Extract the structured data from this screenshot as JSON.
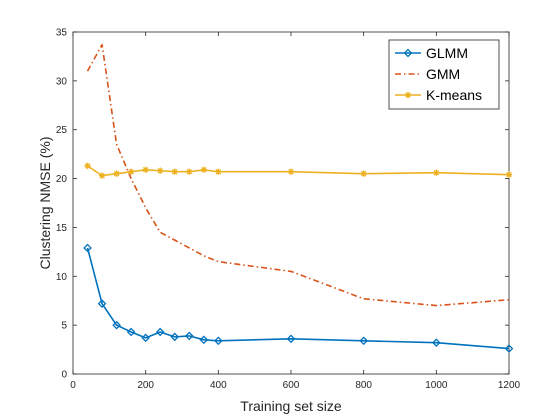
{
  "chart_data": {
    "type": "line",
    "title": "",
    "xlabel": "Training set size",
    "ylabel": "Clustering NMSE (%)",
    "xlim": [
      0,
      1200
    ],
    "ylim": [
      0,
      35
    ],
    "xticks": [
      0,
      200,
      400,
      600,
      800,
      1000,
      1200
    ],
    "yticks": [
      0,
      5,
      10,
      15,
      20,
      25,
      30,
      35
    ],
    "grid": false,
    "legend_position": "top-right",
    "series": [
      {
        "name": "GLMM",
        "color": "#0072BD",
        "line_style": "solid",
        "marker": "diamond",
        "x": [
          40,
          80,
          120,
          160,
          200,
          240,
          280,
          320,
          360,
          400,
          600,
          800,
          1000,
          1200
        ],
        "y": [
          12.9,
          7.2,
          5.0,
          4.3,
          3.7,
          4.3,
          3.8,
          3.9,
          3.5,
          3.4,
          3.6,
          3.4,
          3.2,
          2.6
        ]
      },
      {
        "name": "GMM",
        "color": "#D95319",
        "line_style": "dashdot",
        "marker": "none",
        "x": [
          40,
          80,
          120,
          160,
          200,
          240,
          280,
          320,
          360,
          400,
          600,
          800,
          1000,
          1200
        ],
        "y": [
          31.0,
          33.7,
          23.5,
          20.0,
          17.0,
          14.5,
          13.7,
          12.9,
          12.1,
          11.5,
          10.5,
          7.7,
          7.0,
          7.6
        ]
      },
      {
        "name": "K-means",
        "color": "#EDB120",
        "line_style": "solid",
        "marker": "asterisk",
        "x": [
          40,
          80,
          120,
          160,
          200,
          240,
          280,
          320,
          360,
          400,
          600,
          800,
          1000,
          1200
        ],
        "y": [
          21.3,
          20.3,
          20.5,
          20.7,
          20.9,
          20.8,
          20.7,
          20.7,
          20.9,
          20.7,
          20.7,
          20.5,
          20.6,
          20.4
        ]
      }
    ]
  }
}
